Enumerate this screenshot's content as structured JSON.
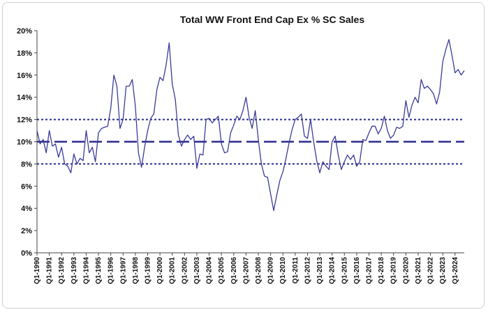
{
  "chart_data": {
    "type": "line",
    "title": "Total WW Front End Cap Ex % SC Sales",
    "xlabel": "",
    "ylabel": "",
    "ylim": [
      0,
      20
    ],
    "y_ticks": [
      "0%",
      "2%",
      "4%",
      "6%",
      "8%",
      "10%",
      "12%",
      "14%",
      "16%",
      "18%",
      "20%"
    ],
    "x_tick_labels": [
      "Q1-1990",
      "Q1-1991",
      "Q1-1992",
      "Q1-1993",
      "Q1-1994",
      "Q1-1995",
      "Q1-1996",
      "Q1-1997",
      "Q1-1998",
      "Q1-1999",
      "Q1-2000",
      "Q1-2001",
      "Q1-2002",
      "Q1-2003",
      "Q1-2004",
      "Q1-2005",
      "Q1-2006",
      "Q1-2007",
      "Q1-2008",
      "Q1-2009",
      "Q1-2010",
      "Q1-2011",
      "Q1-2012",
      "Q1-2013",
      "Q1-2014",
      "Q1-2015",
      "Q1-2016",
      "Q1-2017",
      "Q1-2018",
      "Q1-2019",
      "Q1-2020",
      "Q1-2021",
      "Q1-2022",
      "Q1-2023",
      "Q1-2024"
    ],
    "grid": false,
    "legend": "none",
    "colors": {
      "line": "#3a3a9a",
      "reference": "#2a2a8c"
    },
    "reference_lines": [
      {
        "value": 12,
        "style": "dotted"
      },
      {
        "value": 10,
        "style": "dashed"
      },
      {
        "value": 8,
        "style": "dotted"
      }
    ],
    "series": [
      {
        "values": [
          11.0,
          9.8,
          10.2,
          9.0,
          11.0,
          9.6,
          9.8,
          8.6,
          9.5,
          8.0,
          7.8,
          7.2,
          8.9,
          8.0,
          8.5,
          8.3,
          11.0,
          9.0,
          9.5,
          8.2,
          10.8,
          11.2,
          11.3,
          11.4,
          13.0,
          16.0,
          15.0,
          11.2,
          12.0,
          15.0,
          15.0,
          15.6,
          13.2,
          9.0,
          7.7,
          9.5,
          11.0,
          12.1,
          12.5,
          14.7,
          15.8,
          15.5,
          16.9,
          18.9,
          15.2,
          13.8,
          10.6,
          9.6,
          10.2,
          10.6,
          10.2,
          10.5,
          7.6,
          8.9,
          8.8,
          12.0,
          12.1,
          11.7,
          12.0,
          12.3,
          9.8,
          9.0,
          9.1,
          10.8,
          11.5,
          12.3,
          12.0,
          12.8,
          14.0,
          12.2,
          11.2,
          12.8,
          10.2,
          8.0,
          6.9,
          6.8,
          5.3,
          3.8,
          5.2,
          6.5,
          7.3,
          8.5,
          9.9,
          11.1,
          12.0,
          12.2,
          12.5,
          10.5,
          10.3,
          12.0,
          10.0,
          8.3,
          7.2,
          8.2,
          7.8,
          7.5,
          10.0,
          10.5,
          8.8,
          7.5,
          8.2,
          8.8,
          8.4,
          8.8,
          7.8,
          8.2,
          10.2,
          10.1,
          10.8,
          11.4,
          11.4,
          10.7,
          11.2,
          12.3,
          11.0,
          10.3,
          10.6,
          11.3,
          11.2,
          11.4,
          13.7,
          12.2,
          13.3,
          14.0,
          13.5,
          15.6,
          14.8,
          15.0,
          14.7,
          14.3,
          13.4,
          14.5,
          17.2,
          18.3,
          19.2,
          17.8,
          16.2,
          16.5,
          16.0,
          16.4
        ]
      }
    ]
  }
}
